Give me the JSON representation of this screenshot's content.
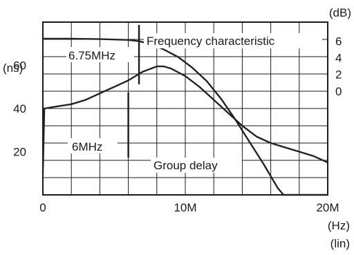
{
  "chart_data": {
    "type": "line",
    "x_unit": "(Hz)",
    "x_scale_note": "(lin)",
    "x_ticks": [
      {
        "value": 0,
        "label": "0"
      },
      {
        "value": 10,
        "label": "10M"
      },
      {
        "value": 20,
        "label": "20M"
      }
    ],
    "xlim": [
      0,
      20
    ],
    "left_axis": {
      "unit": "(ns)",
      "ylim": [
        0,
        80
      ],
      "ticks": [
        {
          "value": 20,
          "label": "20"
        },
        {
          "value": 40,
          "label": "40"
        },
        {
          "value": 60,
          "label": "60"
        }
      ]
    },
    "right_axis": {
      "unit": "(dB)",
      "ylim": [
        -12.5,
        8.3
      ],
      "ticks": [
        {
          "value": 6,
          "label": "6"
        },
        {
          "value": 4,
          "label": "4"
        },
        {
          "value": 2,
          "label": "2"
        },
        {
          "value": 0,
          "label": "0"
        }
      ]
    },
    "series": [
      {
        "name": "Frequency characteristic",
        "axis": "right",
        "color": "#222222",
        "points": [
          [
            0,
            6.3
          ],
          [
            1,
            6.3
          ],
          [
            2,
            6.3
          ],
          [
            3,
            6.28
          ],
          [
            4,
            6.25
          ],
          [
            5,
            6.2
          ],
          [
            6,
            6.15
          ],
          [
            6.75,
            6.0
          ],
          [
            7.5,
            5.7
          ],
          [
            8.5,
            5.0
          ],
          [
            9.5,
            4.1
          ],
          [
            10.5,
            2.8
          ],
          [
            11.5,
            1.2
          ],
          [
            12.5,
            -0.9
          ],
          [
            13.5,
            -3.4
          ],
          [
            14.5,
            -6.1
          ],
          [
            15.5,
            -8.8
          ],
          [
            16.5,
            -11.7
          ],
          [
            16.9,
            -12.5
          ],
          [
            20,
            -12.5
          ]
        ]
      },
      {
        "name": "Group delay",
        "axis": "left",
        "color": "#222222",
        "points": [
          [
            0,
            10
          ],
          [
            0.1,
            40
          ],
          [
            1,
            41
          ],
          [
            2,
            42
          ],
          [
            3,
            44
          ],
          [
            4,
            47
          ],
          [
            5,
            50
          ],
          [
            6,
            53
          ],
          [
            7,
            57
          ],
          [
            8,
            59.5
          ],
          [
            8.5,
            59.5
          ],
          [
            9,
            58.5
          ],
          [
            10,
            55
          ],
          [
            11,
            50
          ],
          [
            12,
            44
          ],
          [
            13,
            38
          ],
          [
            14,
            32
          ],
          [
            15,
            27
          ],
          [
            16,
            24
          ],
          [
            17,
            22
          ],
          [
            18,
            20
          ],
          [
            19,
            18
          ],
          [
            20,
            15
          ]
        ]
      }
    ],
    "annotations": [
      {
        "text": "6.75MHz",
        "x": 6.75,
        "axis": "right"
      },
      {
        "text": "6MHz",
        "x": 6,
        "axis": "left"
      }
    ]
  }
}
